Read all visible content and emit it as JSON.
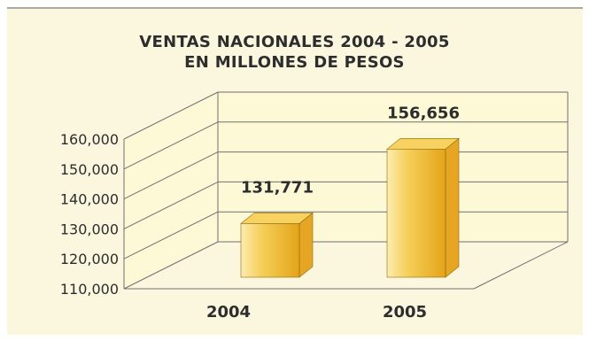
{
  "chart_data": {
    "type": "bar",
    "title": [
      "VENTAS NACIONALES 2004 - 2005",
      "EN MILLONES DE PESOS"
    ],
    "categories": [
      "2004",
      "2005"
    ],
    "values": [
      131771,
      156656
    ],
    "value_labels": [
      "131,771",
      "156,656"
    ],
    "ylim": [
      110000,
      160000
    ],
    "yticks": [
      110000,
      120000,
      130000,
      140000,
      150000,
      160000
    ],
    "ytick_labels": [
      "110,000",
      "120,000",
      "130,000",
      "140,000",
      "150,000",
      "160,000"
    ],
    "grid": true,
    "three_d": true,
    "colors": {
      "panel": "#fbf7df",
      "wall": "#fdf8d6",
      "grid": "#6f6f6f",
      "bar_light": "#fbe7a0",
      "bar_mid": "#f4c445",
      "bar_dark": "#e0a11a",
      "bar_top": "#f8d260",
      "bar_side": "#e6a624",
      "text": "#2d2d2d"
    }
  }
}
